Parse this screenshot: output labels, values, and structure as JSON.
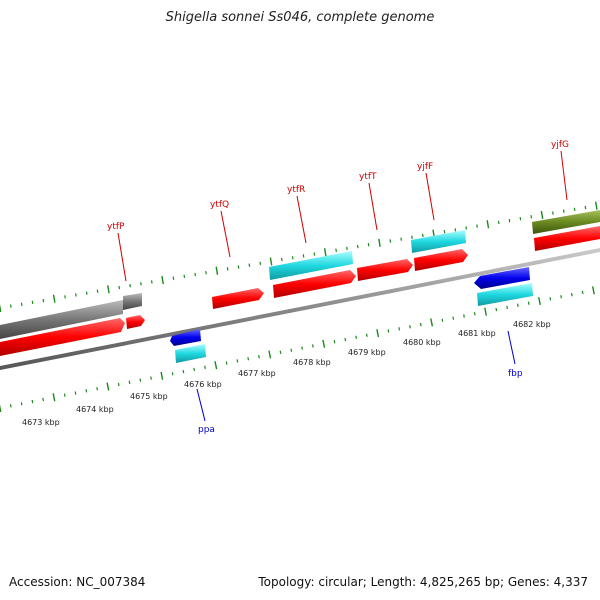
{
  "title": "Shigella sonnei Ss046, complete genome",
  "footer": {
    "accession": "Accession: NC_007384",
    "stats": "Topology: circular; Length: 4,825,265 bp; Genes: 4,337"
  },
  "colors": {
    "backbone": "#808080",
    "tick": "#1a8a1a",
    "forward_label": "#d00000",
    "reverse_label": "#0000c8",
    "cds": "#ff0000",
    "gene_cyan": "#20d0d8",
    "gene_blue": "#0000ee",
    "gene_gray": "#707070",
    "gene_olive": "#6a8a20"
  },
  "scale": {
    "labels": [
      "4673 kbp",
      "4674 kbp",
      "4675 kbp",
      "4676 kbp",
      "4677 kbp",
      "4678 kbp",
      "4679 kbp",
      "4680 kbp",
      "4681 kbp",
      "4682 kbp"
    ]
  },
  "gene_labels": {
    "forward": [
      "ytfP",
      "ytfQ",
      "ytfR",
      "ytfT",
      "yjfF",
      "yjfG"
    ],
    "reverse": [
      "ppa",
      "fbp"
    ]
  }
}
